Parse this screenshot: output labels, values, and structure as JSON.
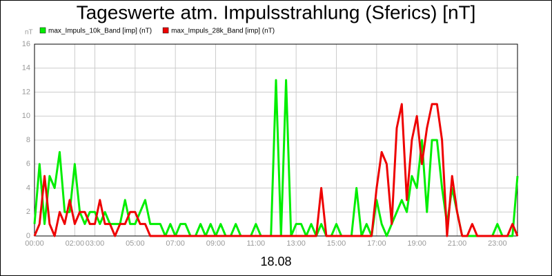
{
  "chart_data": {
    "type": "line",
    "title": "Tageswerte atm. Impulsstrahlung (Sferics) [nT]",
    "y_label": "nT",
    "x_label": "18.08",
    "grid": true,
    "xlim": [
      0,
      24
    ],
    "xticks": [
      {
        "value": 0,
        "label": "00:00"
      },
      {
        "value": 2,
        "label": "02:00"
      },
      {
        "value": 3,
        "label": "03:00"
      },
      {
        "value": 5,
        "label": "05:00"
      },
      {
        "value": 7,
        "label": "07:00"
      },
      {
        "value": 9,
        "label": "09:00"
      },
      {
        "value": 11,
        "label": "11:00"
      },
      {
        "value": 13,
        "label": "13:00"
      },
      {
        "value": 15,
        "label": "15:00"
      },
      {
        "value": 17,
        "label": "17:00"
      },
      {
        "value": 19,
        "label": "19:00"
      },
      {
        "value": 21,
        "label": "21:00"
      },
      {
        "value": 23,
        "label": "23:00"
      }
    ],
    "ylim": [
      0,
      16
    ],
    "yticks": [
      0,
      2,
      4,
      6,
      8,
      10,
      12,
      14,
      16
    ],
    "x": [
      0,
      0.25,
      0.5,
      0.75,
      1,
      1.25,
      1.5,
      1.75,
      2,
      2.25,
      2.5,
      2.75,
      3,
      3.25,
      3.5,
      3.75,
      4,
      4.25,
      4.5,
      4.75,
      5,
      5.25,
      5.5,
      5.75,
      6,
      6.25,
      6.5,
      6.75,
      7,
      7.25,
      7.5,
      7.75,
      8,
      8.25,
      8.5,
      8.75,
      9,
      9.25,
      9.5,
      9.75,
      10,
      10.25,
      10.5,
      10.75,
      11,
      11.25,
      11.5,
      11.75,
      12,
      12.25,
      12.5,
      12.75,
      13,
      13.25,
      13.5,
      13.75,
      14,
      14.25,
      14.5,
      14.75,
      15,
      15.25,
      15.5,
      15.75,
      16,
      16.25,
      16.5,
      16.75,
      17,
      17.25,
      17.5,
      17.75,
      18,
      18.25,
      18.5,
      18.75,
      19,
      19.25,
      19.5,
      19.75,
      20,
      20.25,
      20.5,
      20.75,
      21,
      21.25,
      21.5,
      21.75,
      22,
      22.25,
      22.5,
      22.75,
      23,
      23.25,
      23.5,
      23.75,
      24
    ],
    "series": [
      {
        "name": "max_Impuls_10k_Band [imp] (nT)",
        "color": "#00ee00",
        "values": [
          1,
          6,
          1,
          5,
          4,
          7,
          2,
          2,
          6,
          2,
          1,
          2,
          2,
          1,
          2,
          1,
          1,
          1,
          3,
          1,
          1,
          2,
          3,
          1,
          1,
          1,
          0,
          1,
          0,
          1,
          1,
          0,
          0,
          1,
          0,
          1,
          0,
          1,
          0,
          0,
          1,
          0,
          0,
          0,
          1,
          0,
          0,
          0,
          13,
          0,
          13,
          0,
          1,
          1,
          0,
          1,
          0,
          1,
          0,
          0,
          1,
          0,
          0,
          0,
          4,
          0,
          1,
          0,
          3,
          1,
          0,
          1,
          2,
          3,
          2,
          5,
          4,
          8,
          2,
          8,
          8,
          4,
          1,
          4,
          2,
          0,
          0,
          0,
          0,
          0,
          0,
          0,
          1,
          0,
          0,
          0,
          5
        ]
      },
      {
        "name": "max_Impuls_28k_Band [imp] (nT)",
        "color": "#ee0000",
        "values": [
          0,
          1,
          5,
          1,
          0,
          2,
          1,
          3,
          1,
          2,
          2,
          1,
          1,
          3,
          1,
          1,
          0,
          1,
          1,
          2,
          2,
          1,
          1,
          0,
          0,
          0,
          0,
          0,
          0,
          0,
          0,
          0,
          0,
          0,
          0,
          0,
          0,
          0,
          0,
          0,
          0,
          0,
          0,
          0,
          0,
          0,
          0,
          0,
          0,
          0,
          0,
          0,
          0,
          0,
          0,
          0,
          0,
          4,
          0,
          0,
          0,
          0,
          0,
          0,
          0,
          0,
          0,
          0,
          4,
          7,
          6,
          1,
          9,
          11,
          3,
          8,
          10,
          6,
          9,
          11,
          11,
          8,
          0,
          5,
          2,
          0,
          0,
          1,
          0,
          0,
          0,
          0,
          0,
          0,
          0,
          1,
          0
        ]
      }
    ]
  }
}
